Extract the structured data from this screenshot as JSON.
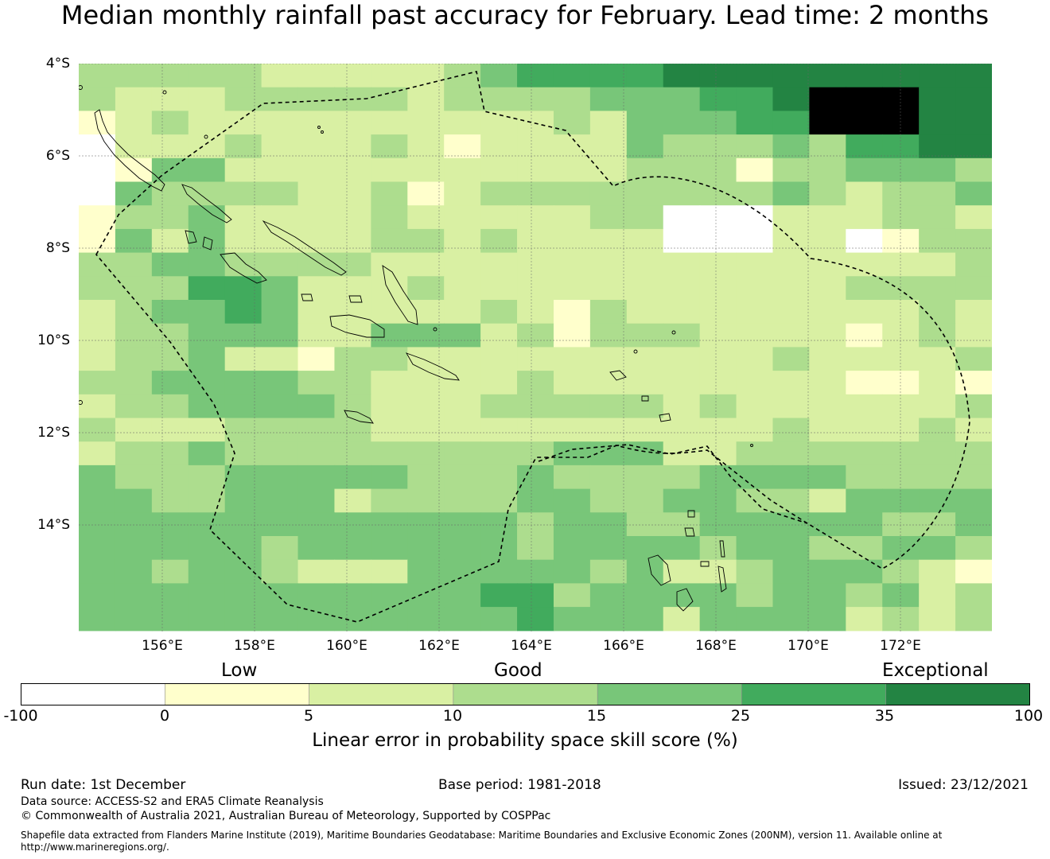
{
  "title": "Median monthly rainfall past accuracy for February. Lead time: 2 months",
  "map": {
    "lat_labels": [
      "4°S",
      "6°S",
      "8°S",
      "10°S",
      "12°S",
      "14°S"
    ],
    "lon_labels": [
      "156°E",
      "158°E",
      "160°E",
      "162°E",
      "164°E",
      "166°E",
      "168°E",
      "170°E",
      "172°E"
    ],
    "lon_range": [
      154.2,
      174.0
    ],
    "lat_range": [
      -16.25,
      -3.95
    ],
    "cell_size_deg": 0.833,
    "grid_start_lon": 154.2,
    "grid_start_lat": -3.95,
    "legend": "EEZ boundary shown as dashed line",
    "grid": [
      "3333322222345555666666666",
      "3222333332333344455677766",
      "1232222222222324445577766",
      "0222322232122224333435566",
      "0144222222222223331334443",
      "0433332231233333333432334",
      "1334222232222233000222332",
      "1424222233232222000220133",
      "3344333322222222222222223",
      "3335542223222222222223333",
      "2344542222232132222222232",
      "2334442244423133322221232",
      "2334221332222222222322223",
      "3344443322223222222221121",
      "2334444322233333232222223",
      "3222333322222222222322232",
      "2334333333333444223333333",
      "4333444443334333344443333",
      "4433444233334433443324444",
      "4444444444443443344444334",
      "4444434444443444434433443",
      "4434432224444434223444321",
      "4444444444455344443443423",
      "4444444444445444244442323"
    ]
  },
  "colorbar": {
    "categories": [
      "Low",
      "Good",
      "Exceptional"
    ],
    "tick_labels": [
      "-100",
      "0",
      "5",
      "10",
      "15",
      "25",
      "35",
      "100"
    ],
    "colors": [
      "#ffffff",
      "#ffffcc",
      "#d9f0a3",
      "#addd8e",
      "#78c679",
      "#41ab5d",
      "#238443"
    ],
    "label": "Linear error in probability space skill score (%)"
  },
  "footer": {
    "run_date": "Run date: 1st December",
    "base_period": "Base period: 1981-2018",
    "issued": "Issued: 23/12/2021",
    "data_source": "Data source: ACCESS-S2 and ERA5 Climate Reanalysis",
    "copyright": "© Commonwealth of Australia 2021, Australian Bureau of Meteorology, Supported by COSPPac",
    "shapefile_line1": "Shapefile data extracted from Flanders Marine Institute (2019), Maritime Boundaries Geodatabase: Maritime Boundaries and Exclusive Economic Zones (200NM), version 11. Available online at",
    "shapefile_line2": "http://www.marineregions.org/."
  }
}
